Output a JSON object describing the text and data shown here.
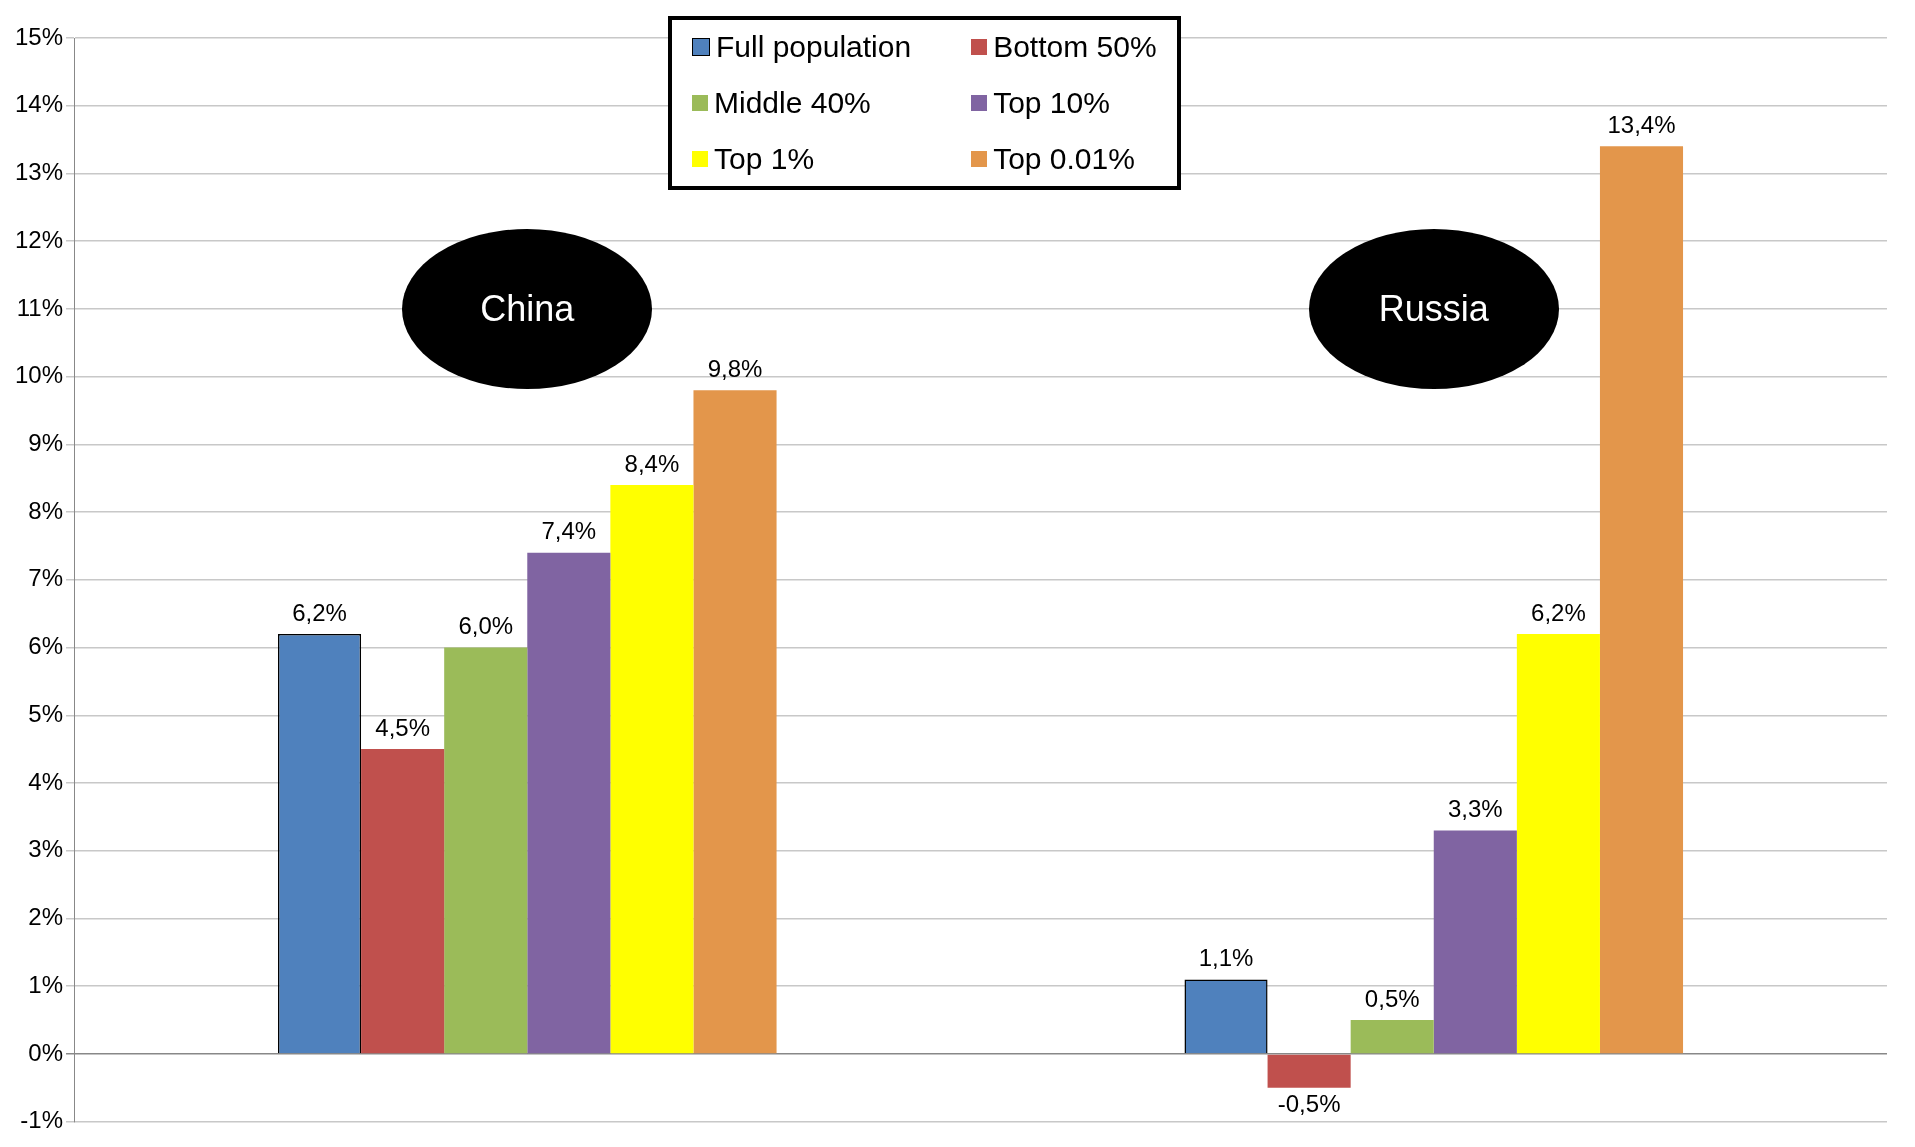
{
  "chart_data": {
    "type": "bar",
    "categories": [
      "China",
      "Russia"
    ],
    "series": [
      {
        "name": "Full population",
        "color": "#4f81bd",
        "values": [
          6.2,
          1.1
        ],
        "value_labels": [
          "6,2%",
          "1,1%"
        ]
      },
      {
        "name": "Bottom 50%",
        "color": "#c0504d",
        "values": [
          4.5,
          -0.5
        ],
        "value_labels": [
          "4,5%",
          "-0,5%"
        ]
      },
      {
        "name": "Middle 40%",
        "color": "#9bbb59",
        "values": [
          6.0,
          0.5
        ],
        "value_labels": [
          "6,0%",
          "0,5%"
        ]
      },
      {
        "name": "Top 10%",
        "color": "#8064a2",
        "values": [
          7.4,
          3.3
        ],
        "value_labels": [
          "7,4%",
          "3,3%"
        ]
      },
      {
        "name": "Top 1%",
        "color": "#ffff00",
        "values": [
          8.4,
          6.2
        ],
        "value_labels": [
          "8,4%",
          "6,2%"
        ]
      },
      {
        "name": "Top 0.01%",
        "color": "#e3964b",
        "values": [
          9.8,
          13.4
        ],
        "value_labels": [
          "9,8%",
          "13,4%"
        ]
      }
    ],
    "ylim": [
      -1,
      15
    ],
    "yticks": [
      {
        "value": -1,
        "label": "-1%"
      },
      {
        "value": 0,
        "label": "0%"
      },
      {
        "value": 1,
        "label": "1%"
      },
      {
        "value": 2,
        "label": "2%"
      },
      {
        "value": 3,
        "label": "3%"
      },
      {
        "value": 4,
        "label": "4%"
      },
      {
        "value": 5,
        "label": "5%"
      },
      {
        "value": 6,
        "label": "6%"
      },
      {
        "value": 7,
        "label": "7%"
      },
      {
        "value": 8,
        "label": "8%"
      },
      {
        "value": 9,
        "label": "9%"
      },
      {
        "value": 10,
        "label": "10%"
      },
      {
        "value": 11,
        "label": "11%"
      },
      {
        "value": 12,
        "label": "12%"
      },
      {
        "value": 13,
        "label": "13%"
      },
      {
        "value": 14,
        "label": "14%"
      },
      {
        "value": 15,
        "label": "15%"
      }
    ],
    "grid": "y",
    "legend": "top"
  }
}
